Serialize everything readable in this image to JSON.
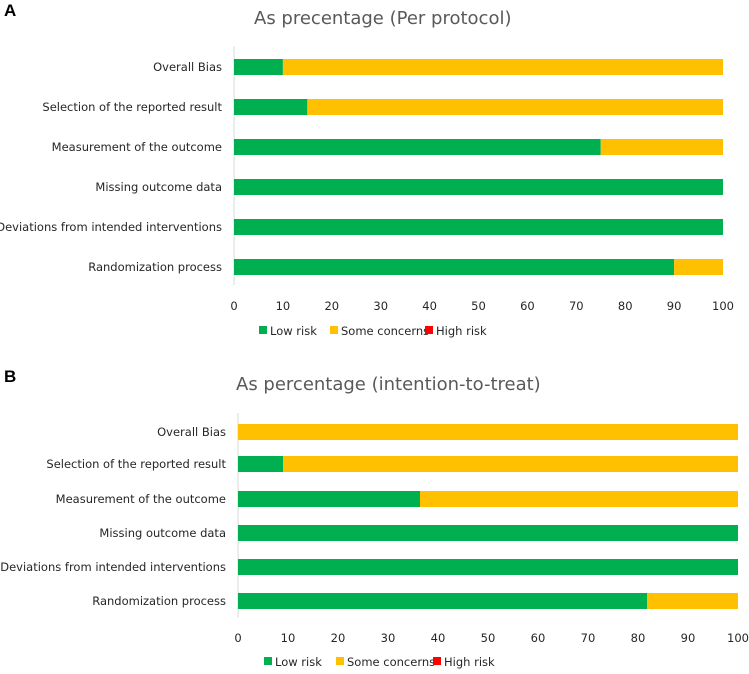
{
  "colors": {
    "low": "#00B050",
    "some": "#FFC000",
    "high": "#FF0000",
    "axis": "#D9D9D9"
  },
  "chart_data": [
    {
      "panel": "A",
      "type": "bar",
      "orientation": "horizontal",
      "stacked": true,
      "title": "As precentage (Per protocol)",
      "categories": [
        "Overall Bias",
        "Selection of the reported result",
        "Measurement of the outcome",
        "Missing outcome data",
        "Deviations from intended interventions",
        "Randomization process"
      ],
      "series": [
        {
          "name": "Low risk",
          "values": [
            10,
            15,
            75,
            100,
            100,
            90
          ]
        },
        {
          "name": "Some concerns",
          "values": [
            90,
            85,
            25,
            0,
            0,
            10
          ]
        },
        {
          "name": "High risk",
          "values": [
            0,
            0,
            0,
            0,
            0,
            0
          ]
        }
      ],
      "xlim": [
        0,
        100
      ],
      "xticks": [
        "0",
        "10",
        "20",
        "30",
        "40",
        "50",
        "60",
        "70",
        "80",
        "90",
        "100"
      ],
      "legend": "bottom"
    },
    {
      "panel": "B",
      "type": "bar",
      "orientation": "horizontal",
      "stacked": true,
      "title": "As percentage (intention-to-treat)",
      "categories": [
        "Overall Bias",
        "Selection of the reported result",
        "Measurement of the outcome",
        "Missing outcome data",
        "Deviations from intended interventions",
        "Randomization process"
      ],
      "series": [
        {
          "name": "Low risk",
          "values": [
            0,
            9,
            36.4,
            100,
            100,
            81.8
          ]
        },
        {
          "name": "Some concerns",
          "values": [
            100,
            91,
            63.6,
            0,
            0,
            18.2
          ]
        },
        {
          "name": "High risk",
          "values": [
            0,
            0,
            0,
            0,
            0,
            0
          ]
        }
      ],
      "xlim": [
        0,
        100
      ],
      "xticks": [
        "0",
        "10",
        "20",
        "30",
        "40",
        "50",
        "60",
        "70",
        "80",
        "90",
        "100"
      ],
      "legend": "bottom"
    }
  ]
}
